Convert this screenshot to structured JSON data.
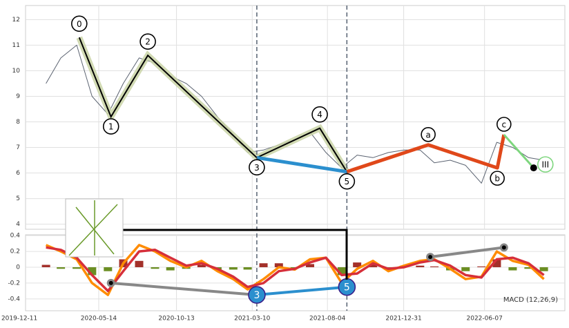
{
  "chart_data": [
    {
      "type": "line",
      "xlim": [
        "2019-12-23",
        "2022-11-11"
      ],
      "ylim": [
        3.8,
        12.55
      ],
      "yticks": [
        4,
        5,
        6,
        7,
        8,
        9,
        10,
        11,
        12
      ],
      "grid": true,
      "series": [
        {
          "color": "#5a6270",
          "x": [
            "2020-02-01",
            "2020-03-01",
            "2020-04-01",
            "2020-05-01",
            "2020-06-01",
            "2020-07-01",
            "2020-08-01",
            "2020-09-01",
            "2020-10-01",
            "2020-11-01",
            "2020-12-01",
            "2021-01-01",
            "2021-02-01",
            "2021-03-01",
            "2021-04-01",
            "2021-05-01",
            "2021-06-01",
            "2021-07-01",
            "2021-08-01",
            "2021-09-01",
            "2021-10-01",
            "2021-11-01",
            "2021-12-01",
            "2022-01-01",
            "2022-02-01",
            "2022-03-01",
            "2022-04-01",
            "2022-05-01",
            "2022-06-01",
            "2022-07-01",
            "2022-08-01",
            "2022-09-01",
            "2022-10-01"
          ],
          "values": [
            9.5,
            10.5,
            11.0,
            9.0,
            8.3,
            9.5,
            10.5,
            10.3,
            9.8,
            9.5,
            9.0,
            8.2,
            7.5,
            6.8,
            6.9,
            7.1,
            7.3,
            7.6,
            6.8,
            6.2,
            6.7,
            6.6,
            6.8,
            6.9,
            6.9,
            6.4,
            6.5,
            6.3,
            5.6,
            7.2,
            7.0,
            6.6,
            6.5
          ]
        }
      ],
      "waves": {
        "x": [
          "2020-04-06",
          "2020-06-07",
          "2020-08-18",
          "2021-03-19",
          "2021-07-20",
          "2021-09-11"
        ],
        "values": [
          11.3,
          8.2,
          10.6,
          6.6,
          7.75,
          6.05
        ],
        "labels": [
          "0",
          "1",
          "2",
          "3",
          "4",
          "5"
        ],
        "color": "#000000"
      },
      "correction": {
        "x": [
          "2021-03-19",
          "2021-09-11"
        ],
        "values": [
          6.6,
          6.05
        ],
        "color": "#2b8fce"
      },
      "abc": {
        "x": [
          "2021-09-11",
          "2022-02-17",
          "2022-07-02",
          "2022-07-15"
        ],
        "values": [
          6.05,
          7.1,
          6.2,
          7.5
        ],
        "labels": [
          null,
          "a",
          "b",
          "c"
        ],
        "color": "#e0481a"
      },
      "projection": {
        "x": [
          "2022-07-15",
          "2022-09-11"
        ],
        "values": [
          7.5,
          6.2
        ],
        "label": "III",
        "color": "#7ed67e"
      },
      "vlines": [
        "2021-03-19",
        "2021-09-11"
      ]
    },
    {
      "type": "line",
      "label": "MACD (12,26,9)",
      "xlim": [
        "2019-12-23",
        "2022-11-11"
      ],
      "ylim": [
        -0.55,
        0.41
      ],
      "yticks": [
        -0.4,
        -0.2,
        0.0,
        0.2,
        0.4
      ],
      "xticks": [
        "2019-12-11",
        "2020-05-14",
        "2020-10-13",
        "2021-03-10",
        "2021-08-04",
        "2021-12-31",
        "2022-06-07"
      ],
      "grid": true,
      "x": [
        "2020-02-01",
        "2020-03-01",
        "2020-04-01",
        "2020-05-01",
        "2020-06-01",
        "2020-07-01",
        "2020-08-01",
        "2020-09-01",
        "2020-10-01",
        "2020-11-01",
        "2020-12-01",
        "2021-01-01",
        "2021-02-01",
        "2021-03-01",
        "2021-04-01",
        "2021-05-01",
        "2021-06-01",
        "2021-07-01",
        "2021-08-01",
        "2021-09-01",
        "2021-10-01",
        "2021-11-01",
        "2021-12-01",
        "2022-01-01",
        "2022-02-01",
        "2022-03-01",
        "2022-04-01",
        "2022-05-01",
        "2022-06-01",
        "2022-07-01",
        "2022-08-01",
        "2022-09-01",
        "2022-10-01"
      ],
      "histogram": {
        "positive_color": "#a3302a",
        "negative_color": "#6b8e23",
        "values": [
          0.03,
          -0.02,
          -0.02,
          -0.1,
          -0.05,
          0.1,
          0.08,
          -0.02,
          -0.04,
          -0.02,
          0.03,
          -0.03,
          -0.03,
          -0.03,
          0.05,
          0.05,
          -0.01,
          0.04,
          0.0,
          -0.1,
          0.06,
          0.03,
          -0.03,
          0.02,
          0.02,
          0.01,
          -0.04,
          -0.05,
          0.01,
          0.1,
          -0.04,
          -0.02,
          -0.05
        ]
      },
      "series": [
        {
          "color": "#ff8c00",
          "values": [
            0.28,
            0.2,
            0.1,
            -0.2,
            -0.35,
            0.05,
            0.28,
            0.2,
            0.08,
            0.0,
            0.08,
            -0.05,
            -0.15,
            -0.28,
            -0.15,
            0.0,
            -0.03,
            0.1,
            0.12,
            -0.2,
            -0.02,
            0.08,
            -0.05,
            0.02,
            0.08,
            0.1,
            -0.02,
            -0.15,
            -0.12,
            0.2,
            0.08,
            0.03,
            -0.15
          ]
        },
        {
          "color": "#d62f3a",
          "values": [
            0.25,
            0.22,
            0.12,
            -0.1,
            -0.3,
            -0.05,
            0.2,
            0.22,
            0.12,
            0.02,
            0.05,
            -0.02,
            -0.12,
            -0.25,
            -0.2,
            -0.05,
            -0.02,
            0.06,
            0.12,
            -0.1,
            -0.08,
            0.05,
            -0.02,
            0.0,
            0.06,
            0.09,
            0.02,
            -0.1,
            -0.13,
            0.1,
            0.12,
            0.05,
            -0.1
          ]
        }
      ],
      "pivots": {
        "x": [
          "2020-06-07",
          "2021-03-19",
          "2021-09-11",
          "2022-02-21",
          "2022-07-15"
        ],
        "values": [
          -0.2,
          -0.35,
          -0.25,
          0.13,
          0.25
        ],
        "labels": [
          null,
          "3",
          "5",
          null,
          null
        ]
      }
    }
  ]
}
